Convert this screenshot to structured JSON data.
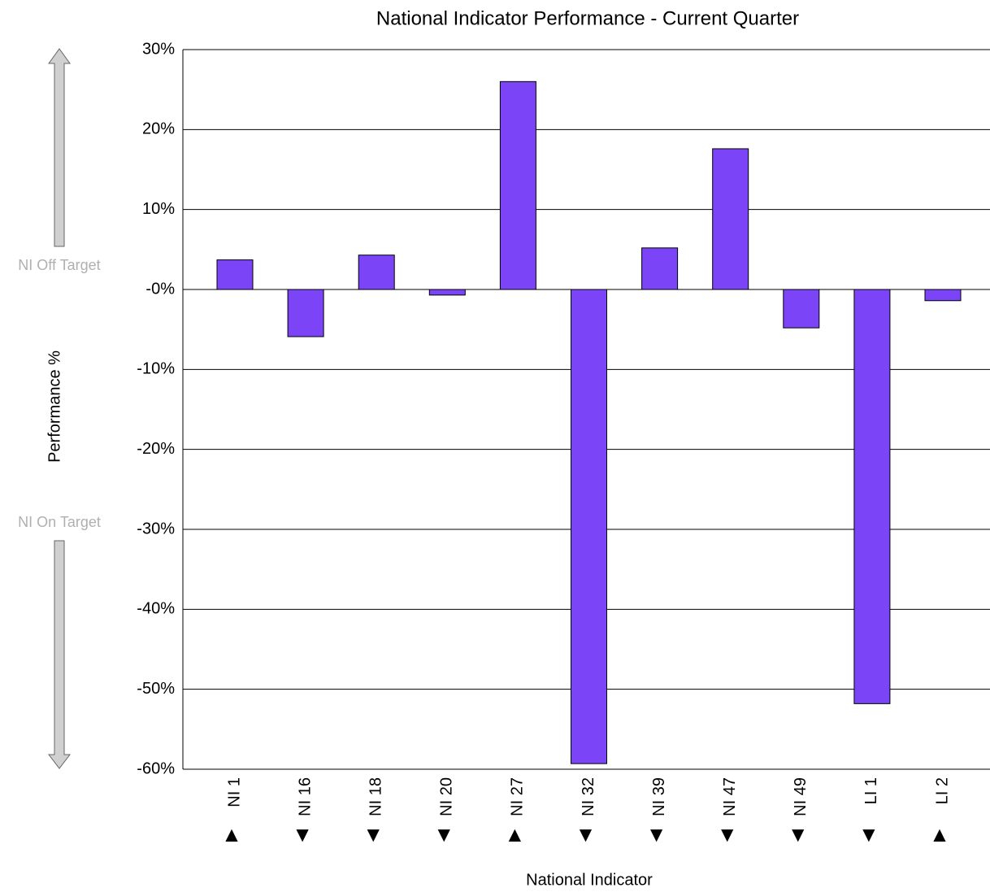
{
  "chart_data": {
    "type": "bar",
    "title": "National Indicator Performance - Current Quarter",
    "x_label": "National Indicator",
    "y_label": "Performance %",
    "annotations": [
      "NI Off Target",
      "NI On Target"
    ],
    "categories": [
      "NI 1",
      "NI 16",
      "NI 18",
      "NI 20",
      "NI 27",
      "NI 32",
      "NI 39",
      "NI 47",
      "NI 49",
      "LI 1",
      "LI 2"
    ],
    "category_markers": [
      "▲",
      "▼",
      "▼",
      "▼",
      "▲",
      "▼",
      "▼",
      "▼",
      "▼",
      "▼",
      "▲"
    ],
    "values": [
      3.7,
      -5.9,
      4.3,
      -0.7,
      26.0,
      -59.3,
      5.2,
      17.6,
      -4.8,
      -51.8,
      -1.4
    ],
    "color": "#7b45f7",
    "ylim": [
      -60,
      30
    ],
    "yticks": [
      {
        "value": -60,
        "label": "-60%"
      },
      {
        "value": -50,
        "label": "-50%"
      },
      {
        "value": -40,
        "label": "-40%"
      },
      {
        "value": -30,
        "label": "-30%"
      },
      {
        "value": -20,
        "label": "-20%"
      },
      {
        "value": -10,
        "label": "-10%"
      },
      {
        "value": 0,
        "label": "-0%"
      },
      {
        "value": 10,
        "label": "10%"
      },
      {
        "value": 20,
        "label": "20%"
      },
      {
        "value": 30,
        "label": "30%"
      }
    ],
    "grid": true
  }
}
